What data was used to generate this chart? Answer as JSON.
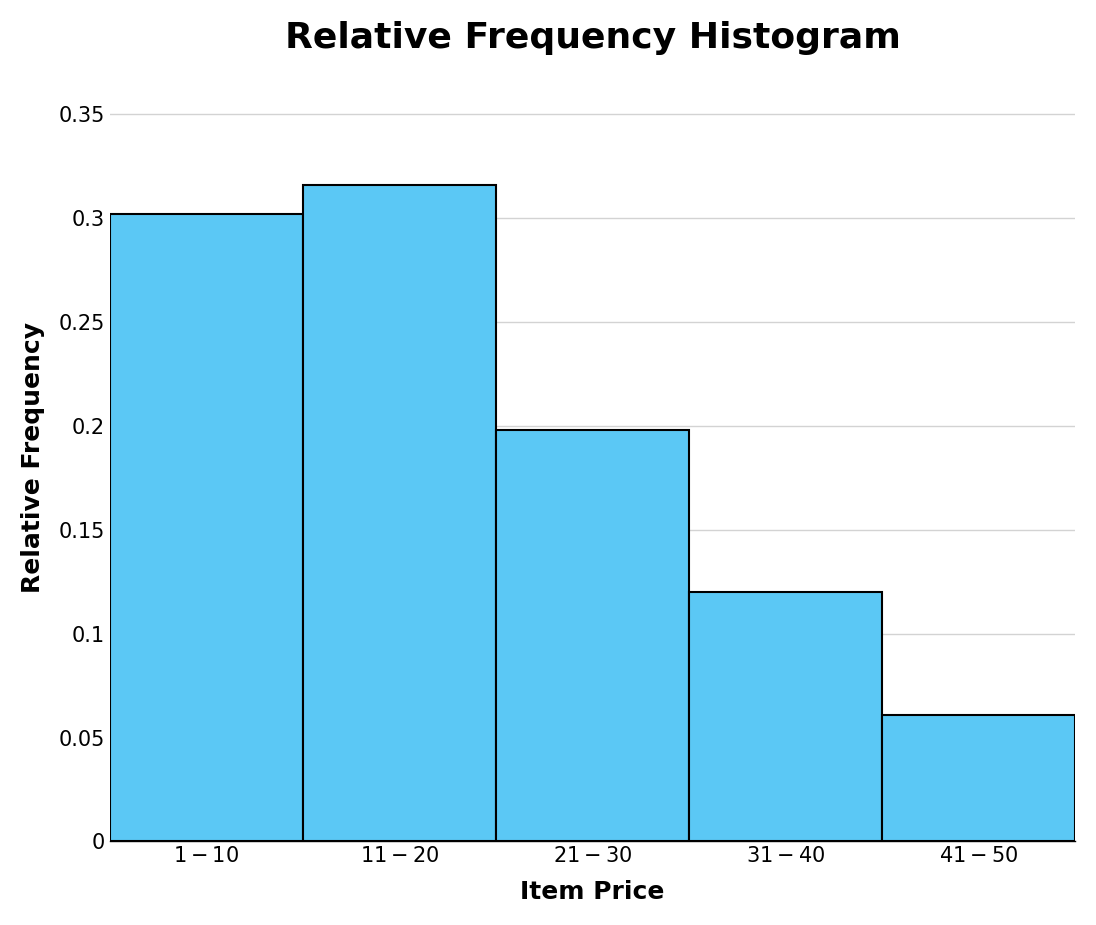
{
  "title": "Relative Frequency Histogram",
  "xlabel": "Item Price",
  "ylabel": "Relative Frequency",
  "categories": [
    "$1 - $10",
    "$11 - $20",
    "$21 - $30",
    "$31 - $40",
    "$41 - $50"
  ],
  "values": [
    0.302,
    0.316,
    0.198,
    0.12,
    0.061
  ],
  "bar_color": "#5BC8F5",
  "bar_edge_color": "#000000",
  "bar_edge_width": 1.5,
  "ylim": [
    0,
    0.37
  ],
  "yticks": [
    0,
    0.05,
    0.1,
    0.15,
    0.2,
    0.25,
    0.3,
    0.35
  ],
  "ytick_labels": [
    "0",
    "0.05",
    "0.1",
    "0.15",
    "0.2",
    "0.25",
    "0.3",
    "0.35"
  ],
  "title_fontsize": 26,
  "title_fontweight": "bold",
  "xlabel_fontsize": 18,
  "xlabel_fontweight": "bold",
  "ylabel_fontsize": 18,
  "ylabel_fontweight": "bold",
  "tick_fontsize": 15,
  "grid_color": "#d3d3d3",
  "grid_linewidth": 1.0,
  "background_color": "#ffffff",
  "font_family": "Arial"
}
